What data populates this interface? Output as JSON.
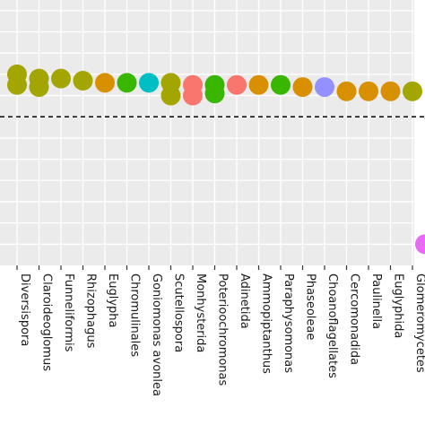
{
  "chart_data": {
    "type": "scatter",
    "categories": [
      "Diversispora",
      "Claroideoglomus",
      "Funneliformis",
      "Rhizophagus",
      "Euglypha",
      "Chromulinales",
      "Goniomonas avonlea",
      "Scutellospora",
      "Monhysterida",
      "Poterioochromonas",
      "Adinetida",
      "Ammopiptanthus",
      "Paraphysomonas",
      "Phaseoleae",
      "Choanoflagellates",
      "Cercomonadida",
      "Paulinella",
      "Euglyphida",
      "Glomeromycetes"
    ],
    "points": [
      {
        "category": "Diversispora",
        "y": 1.0,
        "color": "#a3a500"
      },
      {
        "category": "Diversispora",
        "y": 0.95,
        "color": "#a3a500"
      },
      {
        "category": "Claroideoglomus",
        "y": 0.98,
        "color": "#a3a500"
      },
      {
        "category": "Claroideoglomus",
        "y": 0.94,
        "color": "#a3a500"
      },
      {
        "category": "Funneliformis",
        "y": 0.98,
        "color": "#a3a500"
      },
      {
        "category": "Rhizophagus",
        "y": 0.97,
        "color": "#a3a500"
      },
      {
        "category": "Euglypha",
        "y": 0.96,
        "color": "#d89000"
      },
      {
        "category": "Chromulinales",
        "y": 0.96,
        "color": "#39b600"
      },
      {
        "category": "Goniomonas avonlea",
        "y": 0.96,
        "color": "#00bfc4"
      },
      {
        "category": "Scutellospora",
        "y": 0.96,
        "color": "#a3a500"
      },
      {
        "category": "Scutellospora",
        "y": 0.9,
        "color": "#a3a500"
      },
      {
        "category": "Monhysterida",
        "y": 0.95,
        "color": "#f8766d"
      },
      {
        "category": "Monhysterida",
        "y": 0.9,
        "color": "#f8766d"
      },
      {
        "category": "Poterioochromonas",
        "y": 0.95,
        "color": "#39b600"
      },
      {
        "category": "Poterioochromonas",
        "y": 0.91,
        "color": "#39b600"
      },
      {
        "category": "Adinetida",
        "y": 0.95,
        "color": "#f8766d"
      },
      {
        "category": "Ammopiptanthus",
        "y": 0.95,
        "color": "#d89000"
      },
      {
        "category": "Paraphysomonas",
        "y": 0.95,
        "color": "#39b600"
      },
      {
        "category": "Phaseoleae",
        "y": 0.94,
        "color": "#d89000"
      },
      {
        "category": "Choanoflagellates",
        "y": 0.94,
        "color": "#9590ff"
      },
      {
        "category": "Cercomonadida",
        "y": 0.92,
        "color": "#d89000"
      },
      {
        "category": "Paulinella",
        "y": 0.92,
        "color": "#d89000"
      },
      {
        "category": "Euglyphida",
        "y": 0.92,
        "color": "#d89000"
      },
      {
        "category": "Glomeromycetes",
        "y": 0.92,
        "color": "#a3a500"
      },
      {
        "category": "",
        "y": 0.2,
        "color": "#e76bf3"
      }
    ],
    "reference_line": {
      "y": 0.8,
      "style": "dashed"
    },
    "ylim": [
      0.1,
      1.35
    ],
    "y_gridlines": [
      0.2,
      0.3,
      0.4,
      0.5,
      0.6,
      0.7,
      0.8,
      0.9,
      1.0,
      1.1,
      1.2,
      1.3
    ],
    "grid": true,
    "title": "",
    "xlabel": "",
    "ylabel": "",
    "background": "#ebebeb",
    "grid_color": "#ffffff"
  }
}
